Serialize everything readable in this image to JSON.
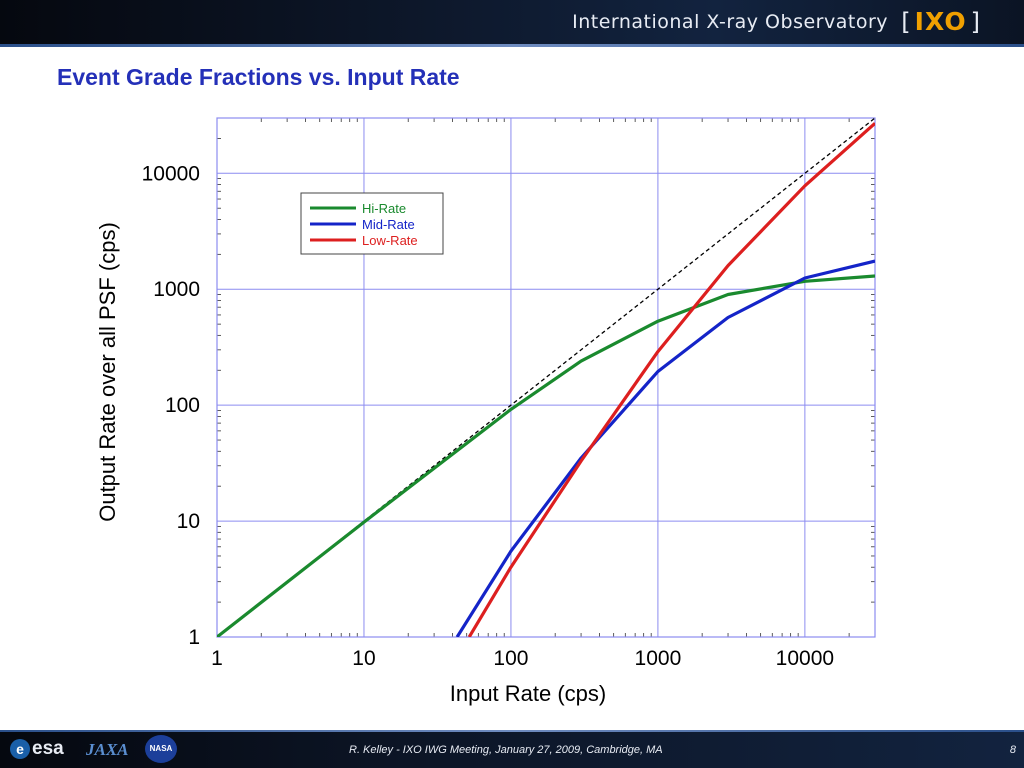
{
  "header": {
    "observatory_title": "International X-ray Observatory",
    "logo_bracket_left": "[",
    "logo_text": "IXO",
    "logo_bracket_right": "]"
  },
  "slide": {
    "title": "Event Grade Fractions vs. Input Rate"
  },
  "footer": {
    "agencies": [
      "esa",
      "JAXA",
      "NASA"
    ],
    "credit": "R. Kelley - IXO IWG Meeting, January 27, 2009, Cambridge, MA",
    "page_number": "8"
  },
  "colors": {
    "title_blue": "#2430b8",
    "hi_rate": "#1a8a2e",
    "mid_rate": "#1424c8",
    "low_rate": "#dd1f1f",
    "grid": "#8c8cf0",
    "logo_orange": "#f0a000"
  },
  "chart_data": {
    "type": "line",
    "title": "",
    "xlabel": "Input Rate (cps)",
    "ylabel": "Output Rate over all PSF (cps)",
    "xscale": "log",
    "yscale": "log",
    "xlim": [
      1,
      30000
    ],
    "ylim": [
      1,
      30000
    ],
    "x_ticks": [
      1,
      10,
      100,
      1000,
      10000
    ],
    "x_tick_labels": [
      "1",
      "10",
      "100",
      "1000",
      "10000"
    ],
    "y_ticks": [
      1,
      10,
      100,
      1000,
      10000
    ],
    "y_tick_labels": [
      "1",
      "10",
      "100",
      "1000",
      "10000"
    ],
    "grid": true,
    "legend_position": "top-left",
    "reference_line": {
      "style": "dashed",
      "color": "#000000",
      "x": [
        1,
        30000
      ],
      "y": [
        1,
        30000
      ]
    },
    "series": [
      {
        "name": "Hi-Rate",
        "color": "#1a8a2e",
        "x": [
          1,
          10,
          100,
          300,
          1000,
          3000,
          10000,
          30000
        ],
        "y": [
          1,
          9.8,
          92,
          240,
          530,
          900,
          1170,
          1300
        ]
      },
      {
        "name": "Mid-Rate",
        "color": "#1424c8",
        "x": [
          43,
          100,
          300,
          1000,
          3000,
          10000,
          30000
        ],
        "y": [
          1,
          5.5,
          35,
          195,
          570,
          1250,
          1750
        ]
      },
      {
        "name": "Low-Rate",
        "color": "#dd1f1f",
        "x": [
          52,
          100,
          300,
          1000,
          3000,
          10000,
          30000
        ],
        "y": [
          1,
          4,
          33,
          290,
          1600,
          7800,
          27000
        ]
      }
    ]
  }
}
